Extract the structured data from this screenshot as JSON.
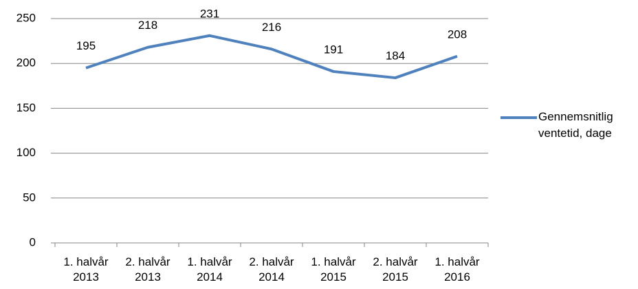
{
  "chart_data": {
    "type": "line",
    "categories": [
      "1. halvår 2013",
      "2. halvår 2013",
      "1. halvår 2014",
      "2. halvår 2014",
      "1. halvår 2015",
      "2. halvår 2015",
      "1. halvår 2016"
    ],
    "series": [
      {
        "name": "Gennemsnitlig ventetid, dage",
        "color": "#4f81bd",
        "values": [
          195,
          218,
          231,
          216,
          191,
          184,
          208
        ]
      }
    ],
    "ylim": [
      0,
      250
    ],
    "yticks": [
      0,
      50,
      100,
      150,
      200,
      250
    ],
    "grid": true,
    "legend": "right"
  }
}
